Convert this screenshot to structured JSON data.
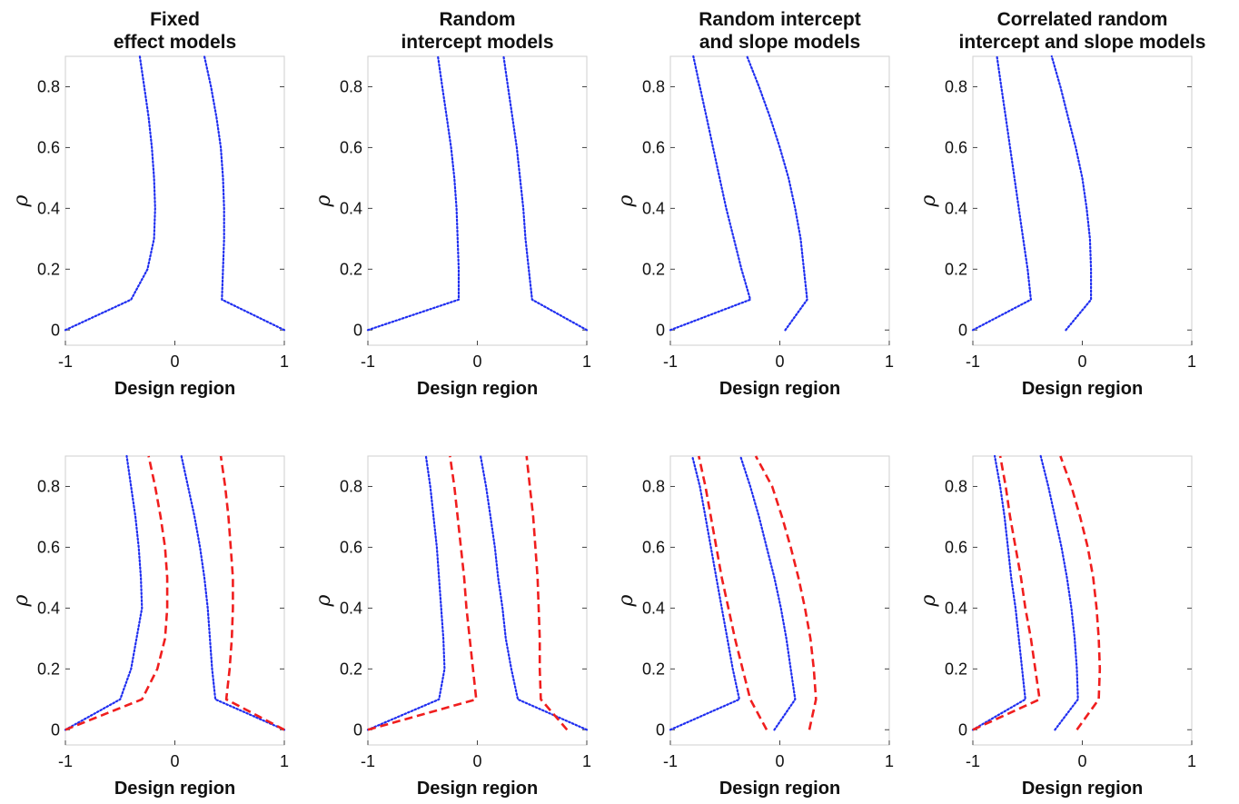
{
  "chart_data": [
    {
      "type": "line",
      "column_title": [
        "Fixed",
        "effect models"
      ],
      "xlabel": "Design region",
      "ylabel": "ρ",
      "xlim": [
        -1,
        1
      ],
      "ylim": [
        -0.05,
        0.9
      ],
      "xticks": [
        -1,
        0,
        1
      ],
      "xtick_labels": [
        "-1",
        "0",
        "1"
      ],
      "yticks": [
        0,
        0.2,
        0.4,
        0.6,
        0.8
      ],
      "ytick_labels": [
        "0",
        "0.2",
        "0.4",
        "0.6",
        "0.8"
      ],
      "series": [
        {
          "style": "blue-dotted",
          "color": "#1f2ef0",
          "x": [
            -1,
            -0.4,
            -0.25,
            -0.19,
            -0.18,
            -0.19,
            -0.21,
            -0.24,
            -0.28,
            -0.32
          ],
          "y": [
            0,
            0.1,
            0.2,
            0.3,
            0.4,
            0.5,
            0.6,
            0.7,
            0.8,
            0.9
          ]
        },
        {
          "style": "blue-dotted",
          "color": "#1f2ef0",
          "x": [
            1,
            0.43,
            0.44,
            0.45,
            0.45,
            0.44,
            0.42,
            0.38,
            0.33,
            0.27
          ],
          "y": [
            0,
            0.1,
            0.2,
            0.3,
            0.4,
            0.5,
            0.6,
            0.7,
            0.8,
            0.9
          ]
        }
      ]
    },
    {
      "type": "line",
      "column_title": [
        "Random",
        "intercept models"
      ],
      "xlabel": "Design region",
      "ylabel": "ρ",
      "xlim": [
        -1,
        1
      ],
      "ylim": [
        -0.05,
        0.9
      ],
      "xticks": [
        -1,
        0,
        1
      ],
      "xtick_labels": [
        "-1",
        "0",
        "1"
      ],
      "yticks": [
        0,
        0.2,
        0.4,
        0.6,
        0.8
      ],
      "ytick_labels": [
        "0",
        "0.2",
        "0.4",
        "0.6",
        "0.8"
      ],
      "series": [
        {
          "style": "blue-dotted",
          "color": "#1f2ef0",
          "x": [
            -1,
            -0.17,
            -0.17,
            -0.18,
            -0.19,
            -0.21,
            -0.24,
            -0.28,
            -0.32,
            -0.36
          ],
          "y": [
            0,
            0.1,
            0.2,
            0.3,
            0.4,
            0.5,
            0.6,
            0.7,
            0.8,
            0.9
          ]
        },
        {
          "style": "blue-dotted",
          "color": "#1f2ef0",
          "x": [
            1,
            0.5,
            0.47,
            0.44,
            0.42,
            0.39,
            0.36,
            0.32,
            0.28,
            0.24
          ],
          "y": [
            0,
            0.1,
            0.2,
            0.3,
            0.4,
            0.5,
            0.6,
            0.7,
            0.8,
            0.9
          ]
        }
      ]
    },
    {
      "type": "line",
      "column_title": [
        "Random intercept",
        "and slope models"
      ],
      "xlabel": "Design region",
      "ylabel": "ρ",
      "xlim": [
        -1,
        1
      ],
      "ylim": [
        -0.05,
        0.9
      ],
      "xticks": [
        -1,
        0,
        1
      ],
      "xtick_labels": [
        "-1",
        "0",
        "1"
      ],
      "yticks": [
        0,
        0.2,
        0.4,
        0.6,
        0.8
      ],
      "ytick_labels": [
        "0",
        "0.2",
        "0.4",
        "0.6",
        "0.8"
      ],
      "series": [
        {
          "style": "blue-dotted",
          "color": "#1f2ef0",
          "x": [
            -1,
            -0.27,
            -0.35,
            -0.42,
            -0.49,
            -0.55,
            -0.61,
            -0.67,
            -0.73,
            -0.79
          ],
          "y": [
            0,
            0.1,
            0.2,
            0.3,
            0.4,
            0.5,
            0.6,
            0.7,
            0.8,
            0.9
          ]
        },
        {
          "style": "blue-dotted",
          "color": "#1f2ef0",
          "x": [
            0.05,
            0.25,
            0.22,
            0.19,
            0.14,
            0.08,
            0.0,
            -0.09,
            -0.19,
            -0.3
          ],
          "y": [
            0,
            0.1,
            0.2,
            0.3,
            0.4,
            0.5,
            0.6,
            0.7,
            0.8,
            0.9
          ]
        }
      ]
    },
    {
      "type": "line",
      "column_title": [
        "Correlated random",
        "intercept and slope models"
      ],
      "xlabel": "Design region",
      "ylabel": "ρ",
      "xlim": [
        -1,
        1
      ],
      "ylim": [
        -0.05,
        0.9
      ],
      "xticks": [
        -1,
        0,
        1
      ],
      "xtick_labels": [
        "-1",
        "0",
        "1"
      ],
      "yticks": [
        0,
        0.2,
        0.4,
        0.6,
        0.8
      ],
      "ytick_labels": [
        "0",
        "0.2",
        "0.4",
        "0.6",
        "0.8"
      ],
      "series": [
        {
          "style": "blue-dotted",
          "color": "#1f2ef0",
          "x": [
            -1,
            -0.47,
            -0.5,
            -0.54,
            -0.58,
            -0.62,
            -0.66,
            -0.7,
            -0.74,
            -0.78
          ],
          "y": [
            0,
            0.1,
            0.2,
            0.3,
            0.4,
            0.5,
            0.6,
            0.7,
            0.8,
            0.9
          ]
        },
        {
          "style": "blue-dotted",
          "color": "#1f2ef0",
          "x": [
            -0.15,
            0.08,
            0.08,
            0.07,
            0.04,
            0.0,
            -0.06,
            -0.13,
            -0.2,
            -0.28
          ],
          "y": [
            0,
            0.1,
            0.2,
            0.3,
            0.4,
            0.5,
            0.6,
            0.7,
            0.8,
            0.9
          ]
        }
      ]
    },
    {
      "type": "line",
      "xlabel": "Design region",
      "ylabel": "ρ",
      "xlim": [
        -1,
        1
      ],
      "ylim": [
        -0.05,
        0.9
      ],
      "xticks": [
        -1,
        0,
        1
      ],
      "xtick_labels": [
        "-1",
        "0",
        "1"
      ],
      "yticks": [
        0,
        0.2,
        0.4,
        0.6,
        0.8
      ],
      "ytick_labels": [
        "0",
        "0.2",
        "0.4",
        "0.6",
        "0.8"
      ],
      "series": [
        {
          "style": "blue-dotted",
          "color": "#1f2ef0",
          "x": [
            -1,
            -0.5,
            -0.4,
            -0.35,
            -0.3,
            -0.31,
            -0.33,
            -0.36,
            -0.4,
            -0.44
          ],
          "y": [
            0,
            0.1,
            0.2,
            0.3,
            0.4,
            0.5,
            0.6,
            0.7,
            0.8,
            0.9
          ]
        },
        {
          "style": "blue-dotted",
          "color": "#1f2ef0",
          "x": [
            1,
            0.37,
            0.34,
            0.32,
            0.3,
            0.27,
            0.23,
            0.18,
            0.12,
            0.06
          ],
          "y": [
            0,
            0.1,
            0.2,
            0.3,
            0.4,
            0.5,
            0.6,
            0.7,
            0.8,
            0.9
          ]
        },
        {
          "style": "red-dashed",
          "color": "#f01e1e",
          "x": [
            -1,
            -0.3,
            -0.16,
            -0.09,
            -0.07,
            -0.07,
            -0.09,
            -0.13,
            -0.18,
            -0.24
          ],
          "y": [
            0,
            0.1,
            0.2,
            0.3,
            0.4,
            0.5,
            0.6,
            0.7,
            0.8,
            0.9
          ]
        },
        {
          "style": "red-dashed",
          "color": "#f01e1e",
          "x": [
            1,
            0.47,
            0.5,
            0.52,
            0.53,
            0.53,
            0.51,
            0.49,
            0.46,
            0.42
          ],
          "y": [
            0,
            0.1,
            0.2,
            0.3,
            0.4,
            0.5,
            0.6,
            0.7,
            0.8,
            0.9
          ]
        }
      ]
    },
    {
      "type": "line",
      "xlabel": "Design region",
      "ylabel": "ρ",
      "xlim": [
        -1,
        1
      ],
      "ylim": [
        -0.05,
        0.9
      ],
      "xticks": [
        -1,
        0,
        1
      ],
      "xtick_labels": [
        "-1",
        "0",
        "1"
      ],
      "yticks": [
        0,
        0.2,
        0.4,
        0.6,
        0.8
      ],
      "ytick_labels": [
        "0",
        "0.2",
        "0.4",
        "0.6",
        "0.8"
      ],
      "series": [
        {
          "style": "blue-dotted",
          "color": "#1f2ef0",
          "x": [
            -1,
            -0.35,
            -0.3,
            -0.31,
            -0.33,
            -0.35,
            -0.37,
            -0.4,
            -0.43,
            -0.47
          ],
          "y": [
            0,
            0.1,
            0.2,
            0.3,
            0.4,
            0.5,
            0.6,
            0.7,
            0.8,
            0.9
          ]
        },
        {
          "style": "blue-dotted",
          "color": "#1f2ef0",
          "x": [
            1,
            0.37,
            0.31,
            0.26,
            0.23,
            0.19,
            0.16,
            0.12,
            0.08,
            0.03
          ],
          "y": [
            0,
            0.1,
            0.2,
            0.3,
            0.4,
            0.5,
            0.6,
            0.7,
            0.8,
            0.9
          ]
        },
        {
          "style": "red-dashed",
          "color": "#f01e1e",
          "x": [
            -1,
            -0.01,
            -0.04,
            -0.07,
            -0.1,
            -0.12,
            -0.15,
            -0.18,
            -0.21,
            -0.25
          ],
          "y": [
            0,
            0.1,
            0.2,
            0.3,
            0.4,
            0.5,
            0.6,
            0.7,
            0.8,
            0.9
          ]
        },
        {
          "style": "red-dashed",
          "color": "#f01e1e",
          "x": [
            0.82,
            0.58,
            0.57,
            0.57,
            0.56,
            0.55,
            0.53,
            0.51,
            0.48,
            0.45
          ],
          "y": [
            0,
            0.1,
            0.2,
            0.3,
            0.4,
            0.5,
            0.6,
            0.7,
            0.8,
            0.9
          ]
        }
      ]
    },
    {
      "type": "line",
      "xlabel": "Design region",
      "ylabel": "ρ",
      "xlim": [
        -1,
        1
      ],
      "ylim": [
        -0.05,
        0.9
      ],
      "xticks": [
        -1,
        0,
        1
      ],
      "xtick_labels": [
        "-1",
        "0",
        "1"
      ],
      "yticks": [
        0,
        0.2,
        0.4,
        0.6,
        0.8
      ],
      "ytick_labels": [
        "0",
        "0.2",
        "0.4",
        "0.6",
        "0.8"
      ],
      "series": [
        {
          "style": "blue-dotted",
          "color": "#1f2ef0",
          "x": [
            -1,
            -0.37,
            -0.43,
            -0.48,
            -0.53,
            -0.58,
            -0.63,
            -0.68,
            -0.73,
            -0.8
          ],
          "y": [
            0,
            0.1,
            0.2,
            0.3,
            0.4,
            0.5,
            0.6,
            0.7,
            0.8,
            0.9
          ]
        },
        {
          "style": "blue-dotted",
          "color": "#1f2ef0",
          "x": [
            -0.05,
            0.14,
            0.1,
            0.06,
            0.01,
            -0.05,
            -0.12,
            -0.19,
            -0.27,
            -0.36
          ],
          "y": [
            0,
            0.1,
            0.2,
            0.3,
            0.4,
            0.5,
            0.6,
            0.7,
            0.8,
            0.9
          ]
        },
        {
          "style": "red-dashed",
          "color": "#f01e1e",
          "x": [
            -0.12,
            -0.27,
            -0.34,
            -0.41,
            -0.47,
            -0.53,
            -0.58,
            -0.63,
            -0.68,
            -0.74
          ],
          "y": [
            0,
            0.1,
            0.2,
            0.3,
            0.4,
            0.5,
            0.6,
            0.7,
            0.8,
            0.9
          ]
        },
        {
          "style": "red-dashed",
          "color": "#f01e1e",
          "x": [
            0.27,
            0.33,
            0.31,
            0.28,
            0.23,
            0.17,
            0.1,
            0.02,
            -0.07,
            -0.22
          ],
          "y": [
            0,
            0.1,
            0.2,
            0.3,
            0.4,
            0.5,
            0.6,
            0.7,
            0.8,
            0.9
          ]
        }
      ]
    },
    {
      "type": "line",
      "xlabel": "Design region",
      "ylabel": "ρ",
      "xlim": [
        -1,
        1
      ],
      "ylim": [
        -0.05,
        0.9
      ],
      "xticks": [
        -1,
        0,
        1
      ],
      "xtick_labels": [
        "-1",
        "0",
        "1"
      ],
      "yticks": [
        0,
        0.2,
        0.4,
        0.6,
        0.8
      ],
      "ytick_labels": [
        "0",
        "0.2",
        "0.4",
        "0.6",
        "0.8"
      ],
      "series": [
        {
          "style": "blue-dotted",
          "color": "#1f2ef0",
          "x": [
            -1,
            -0.52,
            -0.55,
            -0.58,
            -0.61,
            -0.65,
            -0.68,
            -0.71,
            -0.75,
            -0.8
          ],
          "y": [
            0,
            0.1,
            0.2,
            0.3,
            0.4,
            0.5,
            0.6,
            0.7,
            0.8,
            0.9
          ]
        },
        {
          "style": "blue-dotted",
          "color": "#1f2ef0",
          "x": [
            -0.25,
            -0.04,
            -0.05,
            -0.07,
            -0.1,
            -0.14,
            -0.19,
            -0.25,
            -0.31,
            -0.38
          ],
          "y": [
            0,
            0.1,
            0.2,
            0.3,
            0.4,
            0.5,
            0.6,
            0.7,
            0.8,
            0.9
          ]
        },
        {
          "style": "red-dashed",
          "color": "#f01e1e",
          "x": [
            -1,
            -0.39,
            -0.43,
            -0.47,
            -0.52,
            -0.56,
            -0.61,
            -0.66,
            -0.7,
            -0.75
          ],
          "y": [
            0,
            0.1,
            0.2,
            0.3,
            0.4,
            0.5,
            0.6,
            0.7,
            0.8,
            0.9
          ]
        },
        {
          "style": "red-dashed",
          "color": "#f01e1e",
          "x": [
            -0.05,
            0.15,
            0.16,
            0.15,
            0.13,
            0.1,
            0.05,
            -0.02,
            -0.1,
            -0.2
          ],
          "y": [
            0,
            0.1,
            0.2,
            0.3,
            0.4,
            0.5,
            0.6,
            0.7,
            0.8,
            0.9
          ]
        }
      ]
    }
  ]
}
